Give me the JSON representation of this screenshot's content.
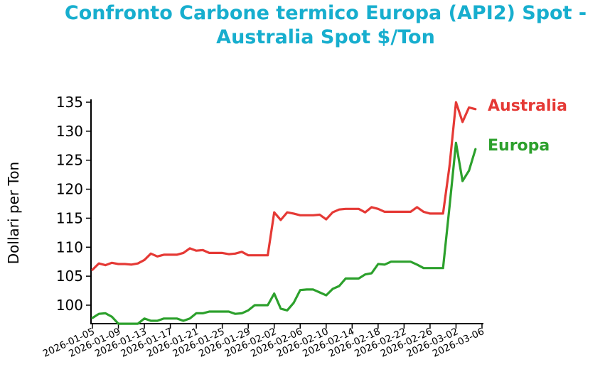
{
  "chart_data": {
    "type": "line",
    "title": [
      "Confronto Carbone termico Europa (API2) Spot -",
      "Australia Spot $/Ton"
    ],
    "xlabel": "",
    "ylabel": "Dollari per Ton",
    "ylim": [
      96.8,
      135
    ],
    "xlim": [
      "2026-01-05",
      "2026-03-06"
    ],
    "start_date": "2026-01-05",
    "yticks": [
      "100",
      "105",
      "110",
      "115",
      "120",
      "125",
      "130",
      "135"
    ],
    "xticks": [
      "2026-01-05",
      "2026-01-09",
      "2026-01-13",
      "2026-01-17",
      "2026-01-21",
      "2026-01-25",
      "2026-01-29",
      "2026-02-02",
      "2026-02-06",
      "2026-02-10",
      "2026-02-14",
      "2026-02-18",
      "2026-02-22",
      "2026-02-26",
      "2026-03-02",
      "2026-03-06"
    ],
    "grid": false,
    "legend_placement": "right-inline",
    "series": [
      {
        "name": "Australia",
        "color": "#e53935",
        "values": [
          106.1,
          107.2,
          106.9,
          107.3,
          107.1,
          107.1,
          107.0,
          107.2,
          107.8,
          108.9,
          108.4,
          108.7,
          108.7,
          108.7,
          109.0,
          109.8,
          109.4,
          109.5,
          109.0,
          109.0,
          109.0,
          108.8,
          108.9,
          109.2,
          108.6,
          108.6,
          108.6,
          108.6,
          116.0,
          114.7,
          116.0,
          115.8,
          115.5,
          115.5,
          115.5,
          115.6,
          114.8,
          116.0,
          116.5,
          116.6,
          116.6,
          116.6,
          116.0,
          116.9,
          116.6,
          116.1,
          116.1,
          116.1,
          116.1,
          116.1,
          116.9,
          116.1,
          115.8,
          115.8,
          115.8,
          124.0,
          135.0,
          131.6,
          134.1,
          133.8
        ]
      },
      {
        "name": "Europa",
        "color": "#2ca02c",
        "values": [
          97.8,
          98.5,
          98.6,
          98.0,
          96.8,
          96.8,
          96.8,
          96.8,
          97.7,
          97.3,
          97.3,
          97.7,
          97.7,
          97.7,
          97.3,
          97.7,
          98.6,
          98.6,
          98.9,
          98.9,
          98.9,
          98.9,
          98.5,
          98.6,
          99.1,
          100.0,
          100.0,
          100.0,
          102.0,
          99.4,
          99.1,
          100.4,
          102.6,
          102.7,
          102.7,
          102.2,
          101.7,
          102.8,
          103.3,
          104.6,
          104.6,
          104.6,
          105.3,
          105.5,
          107.1,
          107.0,
          107.5,
          107.5,
          107.5,
          107.5,
          107.0,
          106.4,
          106.4,
          106.4,
          106.4,
          117.0,
          128.0,
          121.4,
          123.2,
          126.9
        ]
      }
    ]
  }
}
